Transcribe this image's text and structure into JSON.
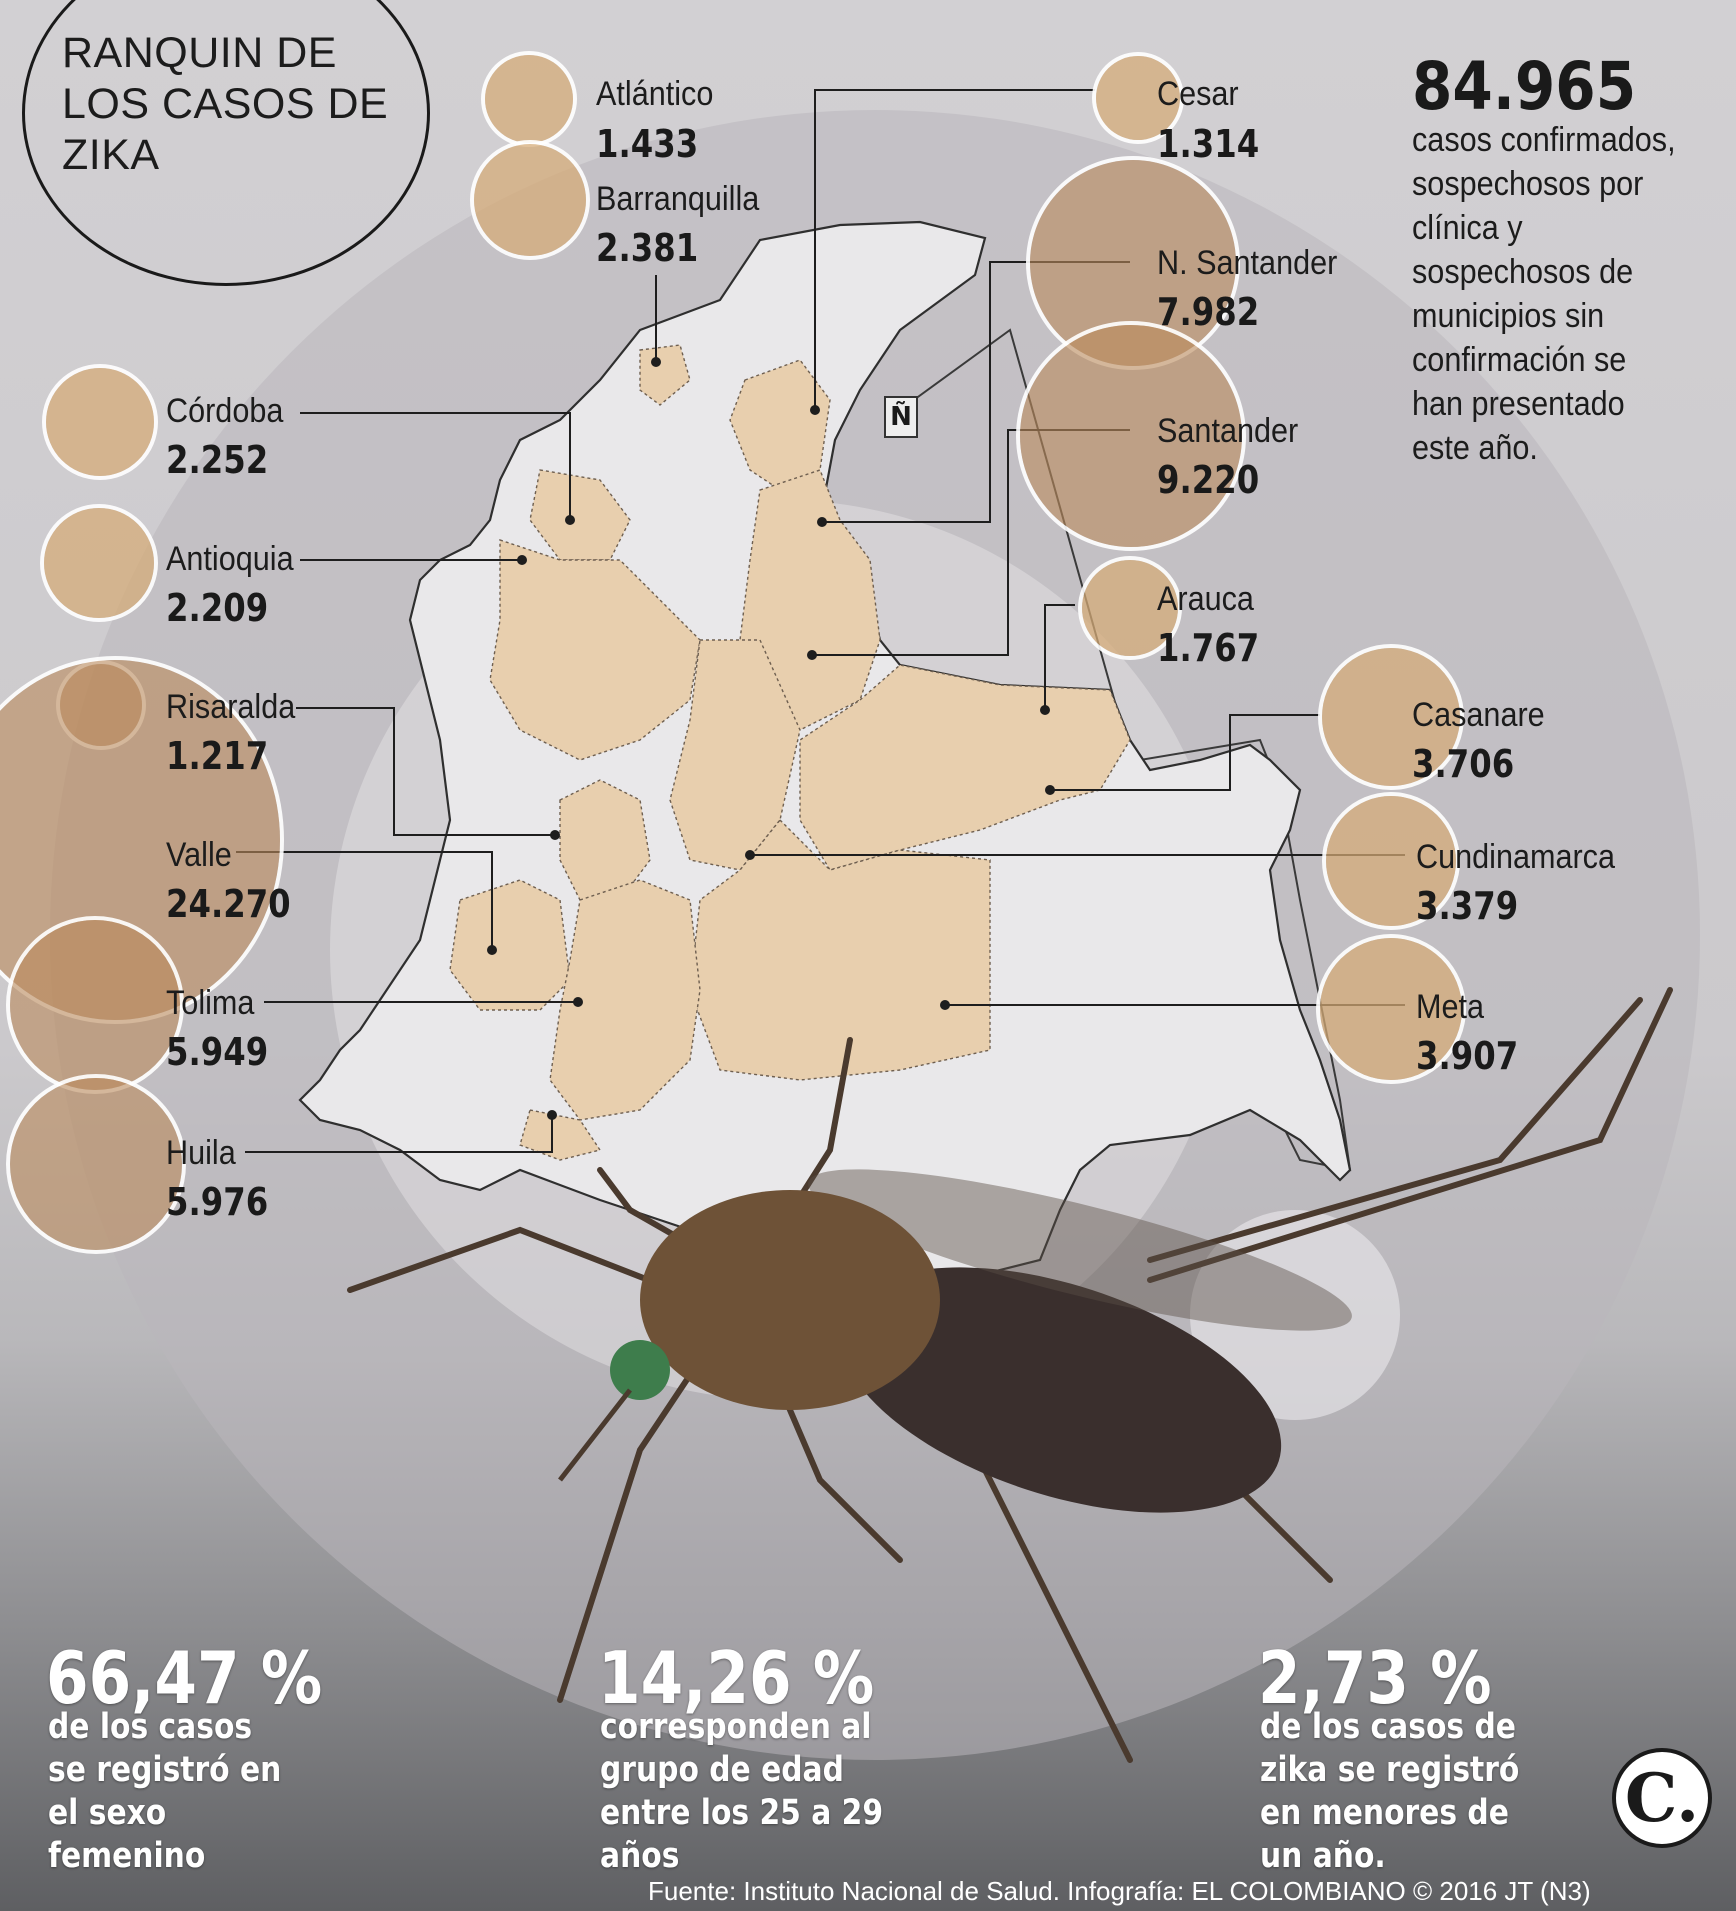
{
  "title": "RANQUIN DE LOS CASOS DE ZIKA",
  "total": {
    "value": "84.965",
    "description": "casos confirmados, sospechosos por clínica y sospechosos de municipios sin confirmación se han presentado este año."
  },
  "north_symbol": "Ñ",
  "departments": [
    {
      "name": "Atlántico",
      "value": "1.433"
    },
    {
      "name": "Barranquilla",
      "value": "2.381"
    },
    {
      "name": "Cesar",
      "value": "1.314"
    },
    {
      "name": "N. Santander",
      "value": "7.982"
    },
    {
      "name": "Santander",
      "value": "9.220"
    },
    {
      "name": "Arauca",
      "value": "1.767"
    },
    {
      "name": "Casanare",
      "value": "3.706"
    },
    {
      "name": "Cundinamarca",
      "value": "3.379"
    },
    {
      "name": "Meta",
      "value": "3.907"
    },
    {
      "name": "Córdoba",
      "value": "2.252"
    },
    {
      "name": "Antioquia",
      "value": "2.209"
    },
    {
      "name": "Risaralda",
      "value": "1.217"
    },
    {
      "name": "Valle",
      "value": "24.270"
    },
    {
      "name": "Tolima",
      "value": "5.949"
    },
    {
      "name": "Huila",
      "value": "5.976"
    }
  ],
  "stats": [
    {
      "value": "66,47 %",
      "description": "de los casos se registró en el sexo femenino"
    },
    {
      "value": "14,26 %",
      "description": "corresponden al grupo de edad entre los 25 a 29 años"
    },
    {
      "value": "2,73 %",
      "description": "de los casos de zika se registró en menores de un año."
    }
  ],
  "logo": "C.",
  "source": "Fuente: Instituto Nacional de Salud. Infografía: EL COLOMBIANO © 2016 JT (N3)",
  "colors": {
    "bubble": "#d6aa76",
    "map_fill": "#e8cfae",
    "map_empty": "#e9e8ea"
  }
}
